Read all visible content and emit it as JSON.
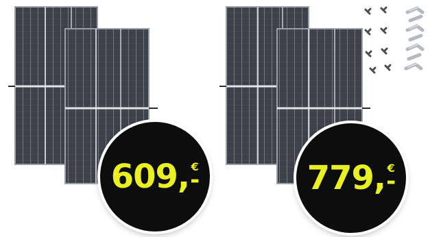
{
  "offers": [
    {
      "id": "offer-1",
      "price_amount": "609,",
      "price_currency": "€",
      "price_dash": "-",
      "panel_count": 2,
      "includes_mounting_kit": false
    },
    {
      "id": "offer-2",
      "price_amount": "779,",
      "price_currency": "€",
      "price_dash": "-",
      "panel_count": 2,
      "includes_mounting_kit": true
    }
  ],
  "colors": {
    "badge_background": "#0d0d0d",
    "price_text": "#e8f021",
    "panel_cell": "#3b3f47",
    "panel_frame": "#9aa0a8"
  }
}
